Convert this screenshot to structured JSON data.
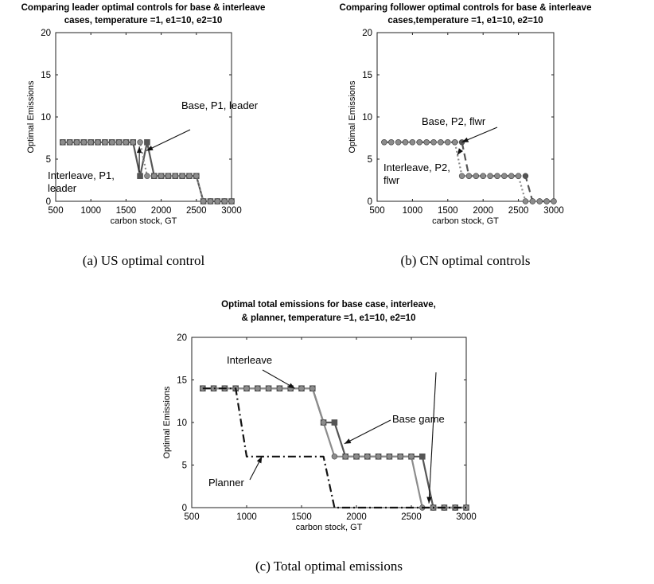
{
  "chart_data": [
    {
      "type": "line",
      "title_lines": [
        "Comparing leader optimal controls for base & interleave",
        "cases, temperature =1, e1=10, e2=10"
      ],
      "xlabel": "carbon stock, GT",
      "ylabel": "Optimal Emissions",
      "xlim": [
        500,
        3000
      ],
      "ylim": [
        0,
        20
      ],
      "xticks": [
        "500",
        "1000",
        "1500",
        "2000",
        "2500",
        "3000"
      ],
      "yticks": [
        "0",
        "5",
        "10",
        "15",
        "20"
      ],
      "grid": false,
      "caption": "(a)  US optimal control",
      "series": [
        {
          "color": "#555555",
          "line": "solid",
          "marker": "square",
          "x": [
            600,
            700,
            800,
            900,
            1000,
            1100,
            1200,
            1300,
            1400,
            1500,
            1600,
            1700,
            1800,
            1900,
            2000,
            2100,
            2200,
            2300,
            2400,
            2500,
            2600,
            2700,
            2800,
            2900,
            3000
          ],
          "y": [
            7,
            7,
            7,
            7,
            7,
            7,
            7,
            7,
            7,
            7,
            7,
            3,
            7,
            3,
            3,
            3,
            3,
            3,
            3,
            3,
            0,
            0,
            0,
            0,
            0
          ]
        },
        {
          "color": "#8c8c8c",
          "line": "dotted",
          "marker": "circle",
          "x": [
            600,
            700,
            800,
            900,
            1000,
            1100,
            1200,
            1300,
            1400,
            1500,
            1600,
            1700,
            1800,
            1900,
            2000,
            2100,
            2200,
            2300,
            2400,
            2500,
            2600,
            2700,
            2800,
            2900,
            3000
          ],
          "y": [
            7,
            7,
            7,
            7,
            7,
            7,
            7,
            7,
            7,
            7,
            7,
            7,
            3,
            3,
            3,
            3,
            3,
            3,
            3,
            3,
            0,
            0,
            0,
            0,
            0
          ]
        }
      ],
      "annotations": [
        {
          "lines": [
            "Base, P1, leader"
          ],
          "points_to": [
            1790,
            6
          ]
        },
        {
          "lines": [
            "Interleave, P1,",
            "leader"
          ],
          "points_to": [
            1690,
            6.5
          ]
        }
      ]
    },
    {
      "type": "line",
      "title_lines": [
        "Comparing follower optimal controls for base & interleave",
        "cases,temperature =1, e1=10, e2=10"
      ],
      "xlabel": "carbon stock, GT",
      "ylabel": "Optimal Emissions",
      "xlim": [
        500,
        3000
      ],
      "ylim": [
        0,
        20
      ],
      "xticks": [
        "500",
        "1000",
        "1500",
        "2000",
        "2500",
        "3000"
      ],
      "yticks": [
        "0",
        "5",
        "10",
        "15",
        "20"
      ],
      "grid": false,
      "caption": "(b)  CN optimal controls",
      "series": [
        {
          "color": "#555555",
          "line": "dashed",
          "marker": "circle",
          "x": [
            600,
            700,
            800,
            900,
            1000,
            1100,
            1200,
            1300,
            1400,
            1500,
            1600,
            1700,
            1800,
            1900,
            2000,
            2100,
            2200,
            2300,
            2400,
            2500,
            2600,
            2700,
            2800,
            2900,
            3000
          ],
          "y": [
            7,
            7,
            7,
            7,
            7,
            7,
            7,
            7,
            7,
            7,
            7,
            7,
            3,
            3,
            3,
            3,
            3,
            3,
            3,
            3,
            3,
            0,
            0,
            0,
            0
          ]
        },
        {
          "color": "#8c8c8c",
          "line": "dotted",
          "marker": "circle",
          "x": [
            600,
            700,
            800,
            900,
            1000,
            1100,
            1200,
            1300,
            1400,
            1500,
            1600,
            1700,
            1800,
            1900,
            2000,
            2100,
            2200,
            2300,
            2400,
            2500,
            2600,
            2700,
            2800,
            2900,
            3000
          ],
          "y": [
            7,
            7,
            7,
            7,
            7,
            7,
            7,
            7,
            7,
            7,
            7,
            3,
            3,
            3,
            3,
            3,
            3,
            3,
            3,
            3,
            0,
            0,
            0,
            0,
            0
          ]
        }
      ],
      "annotations": [
        {
          "lines": [
            "Base, P2, flwr"
          ],
          "points_to": [
            1700,
            7
          ]
        },
        {
          "lines": [
            "Interleave, P2,",
            "flwr"
          ],
          "points_to": [
            1635,
            5.5
          ]
        }
      ]
    },
    {
      "type": "line",
      "title_lines": [
        "Optimal total emissions for base case, interleave,",
        "& planner, temperature =1, e1=10, e2=10"
      ],
      "xlabel": "carbon stock, GT",
      "ylabel": "Optimal Emissions",
      "xlim": [
        500,
        3000
      ],
      "ylim": [
        0,
        20
      ],
      "xticks": [
        "500",
        "1000",
        "1500",
        "2000",
        "2500",
        "3000"
      ],
      "yticks": [
        "0",
        "5",
        "10",
        "15",
        "20"
      ],
      "grid": false,
      "caption": "(c)  Total optimal emissions",
      "series": [
        {
          "color": "#555555",
          "line": "solid",
          "marker": "square",
          "x": [
            600,
            700,
            800,
            900,
            1000,
            1100,
            1200,
            1300,
            1400,
            1500,
            1600,
            1700,
            1800,
            1900,
            2000,
            2100,
            2200,
            2300,
            2400,
            2500,
            2600,
            2700,
            2800,
            2900,
            3000
          ],
          "y": [
            14,
            14,
            14,
            14,
            14,
            14,
            14,
            14,
            14,
            14,
            14,
            10,
            10,
            6,
            6,
            6,
            6,
            6,
            6,
            6,
            6,
            0,
            0,
            0,
            0
          ]
        },
        {
          "color": "#8c8c8c",
          "line": "solid",
          "marker": "circle",
          "x": [
            600,
            700,
            800,
            900,
            1000,
            1100,
            1200,
            1300,
            1400,
            1500,
            1600,
            1700,
            1800,
            1900,
            2000,
            2100,
            2200,
            2300,
            2400,
            2500,
            2600,
            2700,
            2800,
            2900,
            3000
          ],
          "y": [
            14,
            14,
            14,
            14,
            14,
            14,
            14,
            14,
            14,
            14,
            14,
            10,
            6,
            6,
            6,
            6,
            6,
            6,
            6,
            6,
            0,
            0,
            0,
            0,
            0
          ]
        },
        {
          "color": "#111111",
          "line": "dashdot",
          "marker": "none",
          "x": [
            600,
            700,
            800,
            900,
            1000,
            1100,
            1200,
            1300,
            1400,
            1500,
            1600,
            1700,
            1800,
            1900,
            2000,
            2100,
            2200,
            2300,
            2400,
            2500,
            2600,
            2700,
            2800,
            2900,
            3000
          ],
          "y": [
            14,
            14,
            14,
            14,
            6,
            6,
            6,
            6,
            6,
            6,
            6,
            6,
            0,
            0,
            0,
            0,
            0,
            0,
            0,
            0,
            0,
            0,
            0,
            0,
            0
          ]
        }
      ],
      "annotations": [
        {
          "lines": [
            "Interleave"
          ],
          "points_to": [
            1440,
            14
          ]
        },
        {
          "lines": [
            "Base game"
          ],
          "points_to": [
            1890,
            7.5
          ]
        },
        {
          "lines": [
            "Planner"
          ],
          "points_to": [
            1140,
            6
          ]
        },
        {
          "lines": [
            ""
          ],
          "points_to": [
            2660,
            0.5
          ]
        }
      ]
    }
  ]
}
